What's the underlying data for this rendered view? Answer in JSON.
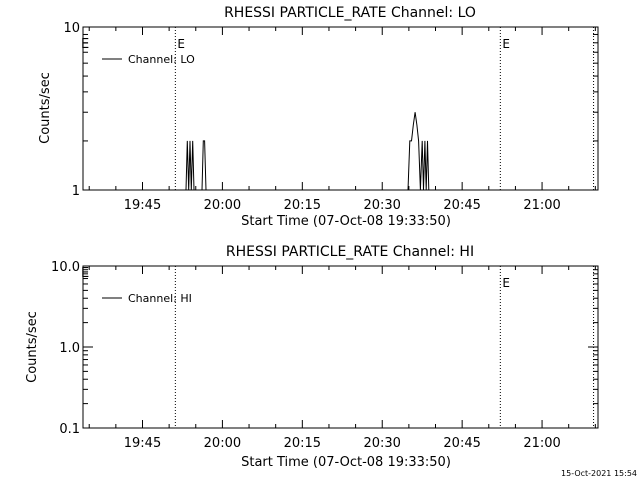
{
  "footer": {
    "timestamp": "15-Oct-2021 15:54"
  },
  "chart_data": [
    {
      "type": "line",
      "title": "RHESSI PARTICLE_RATE Channel: LO",
      "xlabel": "Start Time (07-Oct-08 19:33:50)",
      "ylabel": "Counts/sec",
      "y_scale": "log",
      "ylim": [
        1,
        10
      ],
      "y_ticks": [
        1,
        10
      ],
      "y_tick_labels": [
        "1",
        "10"
      ],
      "xlim": [
        "19:33:50",
        "21:10:30"
      ],
      "x_ticks": [
        "19:45",
        "20:00",
        "20:15",
        "20:30",
        "20:45",
        "21:00"
      ],
      "legend": {
        "position": "top-left",
        "entries": [
          "Channel: LO"
        ]
      },
      "markers": [
        {
          "time": "19:51:10",
          "label": "E"
        },
        {
          "time": "20:52:10",
          "label": "E"
        },
        {
          "time": "21:09:40",
          "label": ""
        }
      ],
      "start_marker_label": "E",
      "series": [
        {
          "name": "Channel: LO",
          "x": [
            "19:33:50",
            "19:53:10",
            "19:53:25",
            "19:53:40",
            "19:53:55",
            "19:54:10",
            "19:54:25",
            "19:54:40",
            "19:56:10",
            "19:56:25",
            "19:56:40",
            "19:56:55",
            "19:57:10",
            "20:34:50",
            "20:35:10",
            "20:35:30",
            "20:35:50",
            "20:36:10",
            "20:36:30",
            "20:36:50",
            "20:37:10",
            "20:37:30",
            "20:37:45",
            "20:38:00",
            "20:38:15",
            "20:38:30",
            "20:38:45",
            "20:39:00",
            "21:10:30"
          ],
          "values": [
            1,
            1,
            2,
            1,
            2,
            1,
            2,
            1,
            1,
            2,
            2,
            1,
            1,
            1,
            2,
            2,
            2.5,
            3,
            2.5,
            2,
            1,
            2,
            1,
            2,
            1,
            2,
            1,
            1,
            1
          ]
        }
      ]
    },
    {
      "type": "line",
      "title": "RHESSI PARTICLE_RATE Channel: HI",
      "xlabel": "Start Time (07-Oct-08 19:33:50)",
      "ylabel": "Counts/sec",
      "y_scale": "log",
      "ylim": [
        0.1,
        10
      ],
      "y_ticks": [
        0.1,
        1,
        10
      ],
      "y_tick_labels": [
        "0.1",
        "1.0",
        "10.0"
      ],
      "xlim": [
        "19:33:50",
        "21:10:30"
      ],
      "x_ticks": [
        "19:45",
        "20:00",
        "20:15",
        "20:30",
        "20:45",
        "21:00"
      ],
      "legend": {
        "position": "top-left",
        "entries": [
          "Channel: HI"
        ]
      },
      "markers": [
        {
          "time": "19:51:10",
          "label": ""
        },
        {
          "time": "20:52:10",
          "label": "E"
        },
        {
          "time": "21:09:40",
          "label": ""
        }
      ],
      "start_marker_label": "E",
      "series": [
        {
          "name": "Channel: HI",
          "x": [],
          "values": []
        }
      ]
    }
  ]
}
